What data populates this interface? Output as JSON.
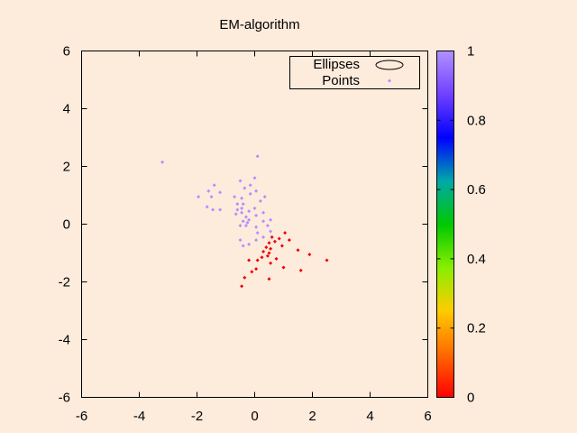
{
  "chart_data": {
    "type": "scatter",
    "title": "EM-algorithm",
    "xlabel": "",
    "ylabel": "",
    "xlim": [
      -6,
      6
    ],
    "ylim": [
      -6,
      6
    ],
    "xticks": [
      "-6",
      "-4",
      "-2",
      "0",
      "2",
      "4",
      "6"
    ],
    "yticks": [
      "-6",
      "-4",
      "-2",
      "0",
      "2",
      "4",
      "6"
    ],
    "grid": false,
    "legend": {
      "placement": "top-right",
      "entries": [
        {
          "label": "Ellipses",
          "marker": "ellipse"
        },
        {
          "label": "Points",
          "marker": "point"
        }
      ]
    },
    "colorbar": {
      "range": [
        0,
        1
      ],
      "ticks": [
        "0",
        "0.2",
        "0.4",
        "0.6",
        "0.8",
        "1"
      ],
      "colormap": "rgbformulae",
      "stops": [
        "#ff0000",
        "#ff6a00",
        "#ffcc00",
        "#88ee00",
        "#00c800",
        "#00a8a8",
        "#0000ff",
        "#7040ff",
        "#b090ff"
      ]
    },
    "series": [
      {
        "color": "#b090ff",
        "points": [
          [
            -3.2,
            2.15
          ],
          [
            0.1,
            2.35
          ],
          [
            0.0,
            1.6
          ],
          [
            -0.5,
            1.5
          ],
          [
            -0.15,
            1.35
          ],
          [
            -0.35,
            1.25
          ],
          [
            0.05,
            1.15
          ],
          [
            -0.15,
            1.05
          ],
          [
            -1.4,
            1.35
          ],
          [
            -1.2,
            1.1
          ],
          [
            -1.6,
            1.15
          ],
          [
            -1.95,
            0.95
          ],
          [
            -1.5,
            0.95
          ],
          [
            -0.7,
            0.95
          ],
          [
            -0.45,
            0.9
          ],
          [
            0.35,
            0.95
          ],
          [
            0.2,
            0.8
          ],
          [
            -0.6,
            0.7
          ],
          [
            -0.4,
            0.7
          ],
          [
            -1.65,
            0.6
          ],
          [
            -1.45,
            0.5
          ],
          [
            -1.2,
            0.5
          ],
          [
            -0.6,
            0.5
          ],
          [
            -0.45,
            0.55
          ],
          [
            -0.65,
            0.35
          ],
          [
            -0.45,
            0.4
          ],
          [
            -0.2,
            0.45
          ],
          [
            0.0,
            0.55
          ],
          [
            0.3,
            0.4
          ],
          [
            -0.3,
            0.25
          ],
          [
            -0.2,
            0.15
          ],
          [
            0.05,
            0.3
          ],
          [
            -0.4,
            0.1
          ],
          [
            -0.25,
            0.05
          ],
          [
            0.3,
            0.1
          ],
          [
            0.55,
            0.15
          ],
          [
            -0.5,
            -0.05
          ],
          [
            -0.3,
            -0.05
          ],
          [
            0.05,
            -0.1
          ],
          [
            0.45,
            -0.05
          ],
          [
            0.55,
            -0.25
          ],
          [
            0.1,
            -0.3
          ],
          [
            -0.5,
            -0.55
          ],
          [
            -0.4,
            -0.75
          ],
          [
            -0.2,
            -0.7
          ],
          [
            0.05,
            -0.55
          ],
          [
            0.3,
            -0.45
          ]
        ]
      },
      {
        "color": "#ee0000",
        "points": [
          [
            1.05,
            -0.3
          ],
          [
            0.6,
            -0.45
          ],
          [
            0.85,
            -0.5
          ],
          [
            0.7,
            -0.6
          ],
          [
            0.5,
            -0.65
          ],
          [
            1.2,
            -0.55
          ],
          [
            0.95,
            -0.75
          ],
          [
            0.4,
            -0.8
          ],
          [
            0.55,
            -0.85
          ],
          [
            0.3,
            -0.95
          ],
          [
            0.5,
            -1.0
          ],
          [
            1.5,
            -0.9
          ],
          [
            1.9,
            -1.05
          ],
          [
            0.45,
            -1.1
          ],
          [
            0.25,
            -1.15
          ],
          [
            0.75,
            -1.2
          ],
          [
            -0.2,
            -1.25
          ],
          [
            0.1,
            -1.25
          ],
          [
            0.55,
            -1.35
          ],
          [
            1.0,
            -1.5
          ],
          [
            0.05,
            -1.55
          ],
          [
            -0.1,
            -1.65
          ],
          [
            -0.35,
            -1.85
          ],
          [
            0.5,
            -1.9
          ],
          [
            -0.45,
            -2.15
          ],
          [
            1.6,
            -1.6
          ],
          [
            2.5,
            -1.25
          ]
        ]
      }
    ]
  }
}
